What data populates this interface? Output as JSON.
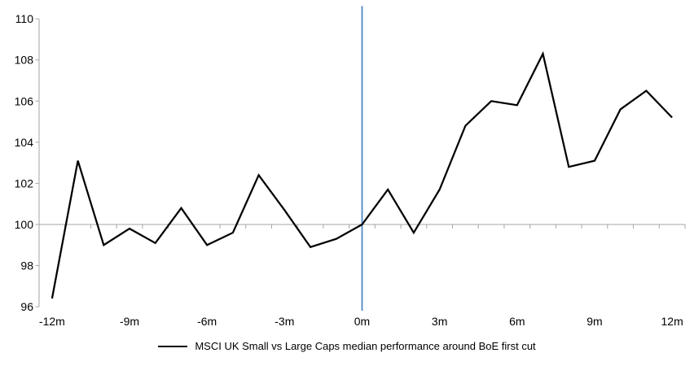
{
  "chart_data": {
    "type": "line",
    "title": "",
    "categories": [
      "-12m",
      "-11m",
      "-10m",
      "-9m",
      "-8m",
      "-7m",
      "-6m",
      "-5m",
      "-4m",
      "-3m",
      "-2m",
      "-1m",
      "0m",
      "1m",
      "2m",
      "3m",
      "4m",
      "5m",
      "6m",
      "7m",
      "8m",
      "9m",
      "10m",
      "11m",
      "12m"
    ],
    "series": [
      {
        "name": "MSCI UK Small vs Large Caps median performance around BoE first cut",
        "values": [
          96.4,
          103.1,
          99.0,
          99.8,
          99.1,
          100.8,
          99.0,
          99.6,
          102.4,
          100.7,
          98.9,
          99.3,
          100.0,
          101.7,
          99.6,
          101.7,
          104.8,
          106.0,
          105.8,
          108.3,
          102.8,
          103.1,
          105.6,
          106.5,
          105.2
        ]
      }
    ],
    "ylim": [
      96,
      110
    ],
    "yticks": [
      96,
      98,
      100,
      102,
      104,
      106,
      108,
      110
    ],
    "x_tick_labels_shown": [
      "-12m",
      "-9m",
      "-6m",
      "-3m",
      "0m",
      "3m",
      "6m",
      "9m",
      "12m"
    ],
    "baseline_value": 100,
    "event_line_category": "0m",
    "grid": "off",
    "legend_position": "bottom",
    "colors": {
      "series": "#000000",
      "event_line": "#4a86c6",
      "baseline_axis": "#a6a6a6",
      "y_axis": "#a6a6a6",
      "text": "#000000"
    }
  },
  "legend": {
    "label": "MSCI UK Small vs Large Caps median performance around BoE first cut"
  }
}
